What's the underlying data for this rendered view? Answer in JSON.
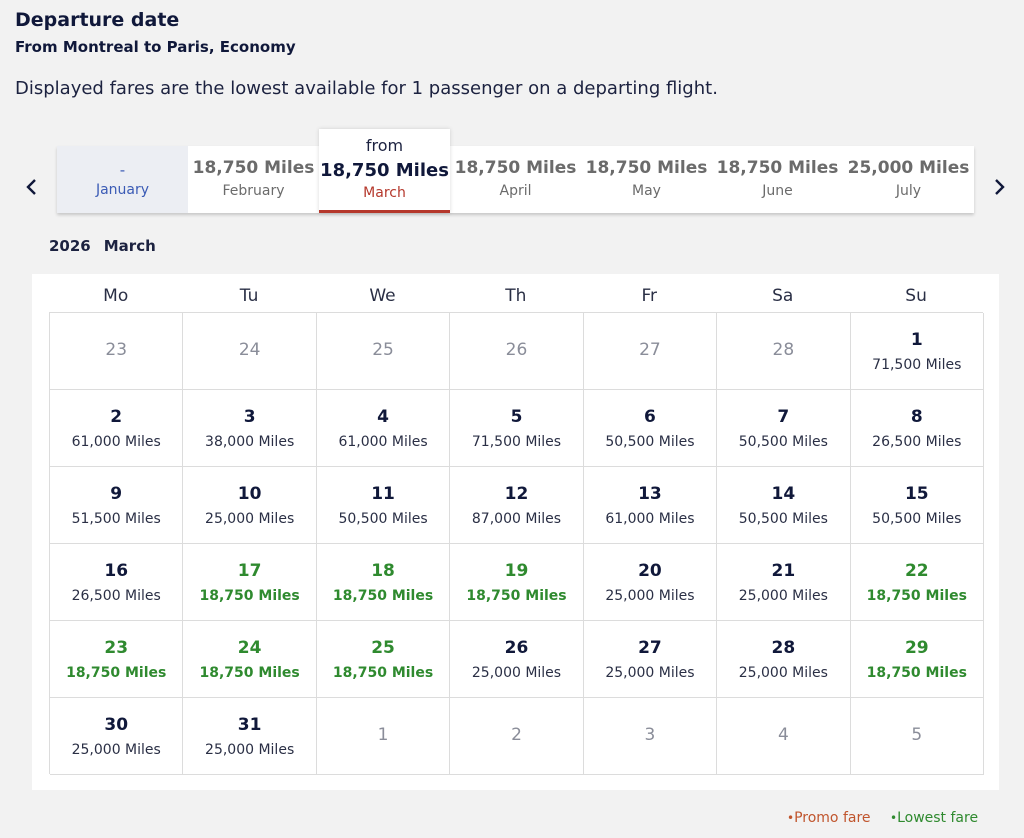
{
  "header": {
    "title": "Departure date",
    "subtitle": "From Montreal to Paris, Economy",
    "disclaimer": "Displayed fares are the lowest available for 1 passenger on a departing flight."
  },
  "month_nav": {
    "selected_prefix": "from",
    "months": [
      {
        "price": "-",
        "name": "January",
        "state": "empty"
      },
      {
        "price": "18,750 Miles",
        "name": "February",
        "state": "normal"
      },
      {
        "price": "18,750 Miles",
        "name": "March",
        "state": "selected"
      },
      {
        "price": "18,750 Miles",
        "name": "April",
        "state": "normal"
      },
      {
        "price": "18,750 Miles",
        "name": "May",
        "state": "normal"
      },
      {
        "price": "18,750 Miles",
        "name": "June",
        "state": "normal"
      },
      {
        "price": "25,000 Miles",
        "name": "July",
        "state": "normal"
      }
    ]
  },
  "calendar": {
    "year": "2026",
    "month": "March",
    "weekdays": [
      "Mo",
      "Tu",
      "We",
      "Th",
      "Fr",
      "Sa",
      "Su"
    ],
    "weeks": [
      [
        {
          "day": "23",
          "type": "other"
        },
        {
          "day": "24",
          "type": "other"
        },
        {
          "day": "25",
          "type": "other"
        },
        {
          "day": "26",
          "type": "other"
        },
        {
          "day": "27",
          "type": "other"
        },
        {
          "day": "28",
          "type": "other"
        },
        {
          "day": "1",
          "miles": "71,500 Miles",
          "type": "normal"
        }
      ],
      [
        {
          "day": "2",
          "miles": "61,000 Miles",
          "type": "normal"
        },
        {
          "day": "3",
          "miles": "38,000 Miles",
          "type": "normal"
        },
        {
          "day": "4",
          "miles": "61,000 Miles",
          "type": "normal"
        },
        {
          "day": "5",
          "miles": "71,500 Miles",
          "type": "normal"
        },
        {
          "day": "6",
          "miles": "50,500 Miles",
          "type": "normal"
        },
        {
          "day": "7",
          "miles": "50,500 Miles",
          "type": "normal"
        },
        {
          "day": "8",
          "miles": "26,500 Miles",
          "type": "normal"
        }
      ],
      [
        {
          "day": "9",
          "miles": "51,500 Miles",
          "type": "normal"
        },
        {
          "day": "10",
          "miles": "25,000 Miles",
          "type": "normal"
        },
        {
          "day": "11",
          "miles": "50,500 Miles",
          "type": "normal"
        },
        {
          "day": "12",
          "miles": "87,000 Miles",
          "type": "normal"
        },
        {
          "day": "13",
          "miles": "61,000 Miles",
          "type": "normal"
        },
        {
          "day": "14",
          "miles": "50,500 Miles",
          "type": "normal"
        },
        {
          "day": "15",
          "miles": "50,500 Miles",
          "type": "normal"
        }
      ],
      [
        {
          "day": "16",
          "miles": "26,500 Miles",
          "type": "normal"
        },
        {
          "day": "17",
          "miles": "18,750 Miles",
          "type": "lowest"
        },
        {
          "day": "18",
          "miles": "18,750 Miles",
          "type": "lowest"
        },
        {
          "day": "19",
          "miles": "18,750 Miles",
          "type": "lowest"
        },
        {
          "day": "20",
          "miles": "25,000 Miles",
          "type": "normal"
        },
        {
          "day": "21",
          "miles": "25,000 Miles",
          "type": "normal"
        },
        {
          "day": "22",
          "miles": "18,750 Miles",
          "type": "lowest"
        }
      ],
      [
        {
          "day": "23",
          "miles": "18,750 Miles",
          "type": "lowest"
        },
        {
          "day": "24",
          "miles": "18,750 Miles",
          "type": "lowest"
        },
        {
          "day": "25",
          "miles": "18,750 Miles",
          "type": "lowest"
        },
        {
          "day": "26",
          "miles": "25,000 Miles",
          "type": "normal"
        },
        {
          "day": "27",
          "miles": "25,000 Miles",
          "type": "normal"
        },
        {
          "day": "28",
          "miles": "25,000 Miles",
          "type": "normal"
        },
        {
          "day": "29",
          "miles": "18,750 Miles",
          "type": "lowest"
        }
      ],
      [
        {
          "day": "30",
          "miles": "25,000 Miles",
          "type": "normal"
        },
        {
          "day": "31",
          "miles": "25,000 Miles",
          "type": "normal"
        },
        {
          "day": "1",
          "type": "other"
        },
        {
          "day": "2",
          "type": "other"
        },
        {
          "day": "3",
          "type": "other"
        },
        {
          "day": "4",
          "type": "other"
        },
        {
          "day": "5",
          "type": "other"
        }
      ]
    ]
  },
  "legend": {
    "dot": "•",
    "promo": "Promo fare",
    "lowest": "Lowest fare"
  },
  "colors": {
    "promo": "#c0552d",
    "lowest": "#2f8a2f",
    "selected_accent": "#b5382c",
    "text_dark": "#10183a"
  },
  "icons": {
    "prev": "chevron-left-icon",
    "next": "chevron-right-icon"
  }
}
